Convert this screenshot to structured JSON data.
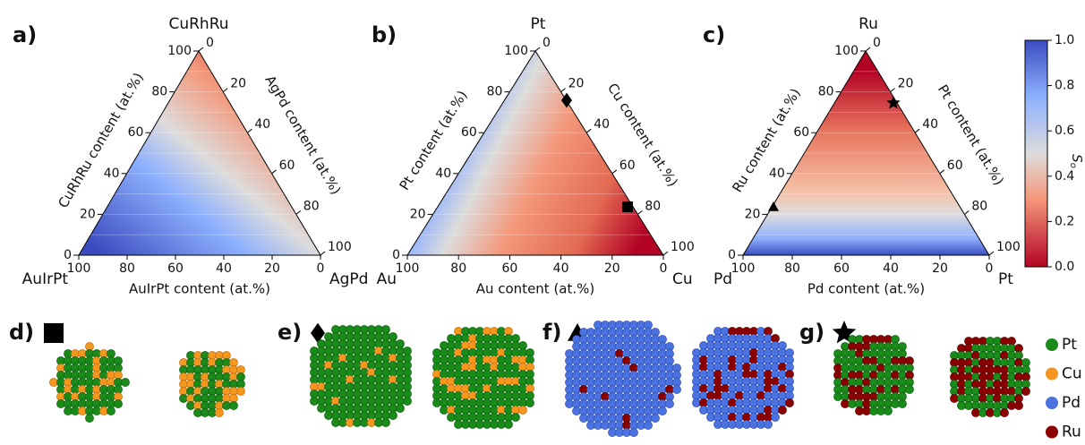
{
  "panels": [
    {
      "label": "a)",
      "top": "CuRhRu",
      "left_corner": "AuIrPt",
      "right_corner": "AgPd",
      "left_axis": "CuRhRu content (at.%)",
      "right_axis": "AgPd content (at.%)",
      "bottom_axis": "AuIrPt content (at.%)",
      "ticks": [
        0,
        20,
        40,
        60,
        80,
        100
      ]
    },
    {
      "label": "b)",
      "top": "Pt",
      "left_corner": "Au",
      "right_corner": "Cu",
      "left_axis": "Pt content (at.%)",
      "right_axis": "Cu content (at.%)",
      "bottom_axis": "Au content (at.%)",
      "ticks": [
        0,
        20,
        40,
        60,
        80,
        100
      ]
    },
    {
      "label": "c)",
      "top": "Ru",
      "left_corner": "Pd",
      "right_corner": "Pt",
      "left_axis": "Ru content (at.%)",
      "right_axis": "Pt content (at.%)",
      "bottom_axis": "Pd content (at.%)",
      "ticks": [
        0,
        20,
        40,
        60,
        80,
        100
      ]
    }
  ],
  "colorbar": {
    "label": "S",
    "subscript": "o",
    "ticks": [
      "1.0",
      "0.8",
      "0.6",
      "0.4",
      "0.2",
      "0.0"
    ]
  },
  "structures": [
    {
      "label": "d)"
    },
    {
      "label": "e)"
    },
    {
      "label": "f)"
    },
    {
      "label": "g)"
    }
  ],
  "legend": [
    "Pt",
    "Cu",
    "Pd",
    "Ru"
  ]
}
